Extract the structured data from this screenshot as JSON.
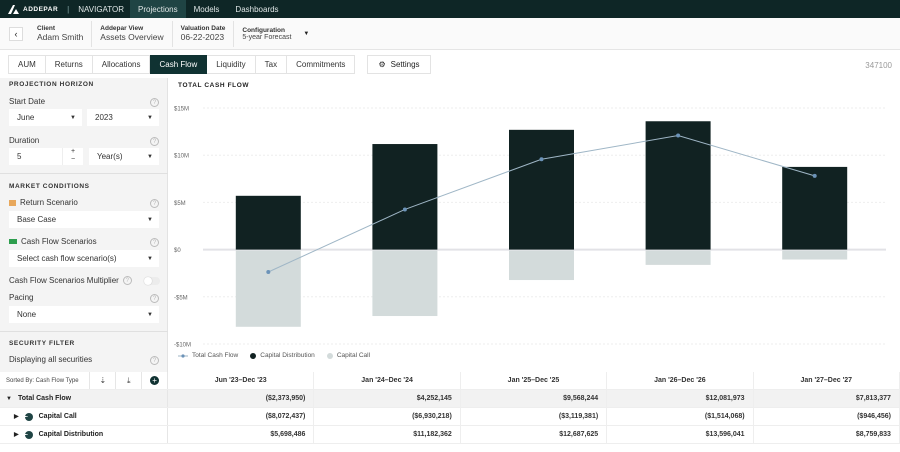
{
  "nav": {
    "brand": "ADDEPAR",
    "product": "NAVIGATOR",
    "items": [
      "Projections",
      "Models",
      "Dashboards"
    ],
    "active": "Projections"
  },
  "header": {
    "client_label": "Client",
    "client": "Adam Smith",
    "view_label": "Addepar View",
    "view": "Assets Overview",
    "date_label": "Valuation Date",
    "date": "06-22-2023",
    "config_label": "Configuration",
    "config": "5-year Forecast"
  },
  "tabs": [
    "AUM",
    "Returns",
    "Allocations",
    "Cash Flow",
    "Liquidity",
    "Tax",
    "Commitments"
  ],
  "active_tab": "Cash Flow",
  "settings_label": "Settings",
  "page_id": "347100",
  "sidebar": {
    "projection_horizon": "PROJECTION HORIZON",
    "start_date_label": "Start Date",
    "start_month": "June",
    "start_year": "2023",
    "duration_label": "Duration",
    "duration": "5",
    "duration_unit": "Year(s)",
    "market_conditions": "MARKET CONDITIONS",
    "return_scenario_label": "Return Scenario",
    "return_scenario": "Base Case",
    "cf_scenarios_label": "Cash Flow Scenarios",
    "cf_scenarios_placeholder": "Select cash flow scenario(s)",
    "multiplier_label": "Cash Flow Scenarios Multiplier",
    "multiplier_on": false,
    "pacing_label": "Pacing",
    "pacing": "None",
    "security_filter": "SECURITY FILTER",
    "security_text": "Displaying all securities"
  },
  "colors": {
    "distribution": "#112222",
    "call": "#d3dbdb",
    "line": "#9fb6c6",
    "accent": "#103232"
  },
  "chart_data": {
    "type": "bar",
    "title": "TOTAL CASH FLOW",
    "categories": [
      "Jun '23–Dec '23",
      "Jan '24–Dec '24",
      "Jan '25–Dec '25",
      "Jan '26–Dec '26",
      "Jan '27–Dec '27"
    ],
    "ylim": [
      -10000000,
      15000000
    ],
    "yticks": [
      {
        "v": 15000000,
        "l": "$15M"
      },
      {
        "v": 10000000,
        "l": "$10M"
      },
      {
        "v": 5000000,
        "l": "$5M"
      },
      {
        "v": 0,
        "l": "$0"
      },
      {
        "v": -5000000,
        "l": "-$5M"
      },
      {
        "v": -10000000,
        "l": "-$10M"
      }
    ],
    "series": [
      {
        "name": "Total Cash Flow",
        "type": "line",
        "values": [
          -2373950,
          4252145,
          9568244,
          12081973,
          7813377
        ]
      },
      {
        "name": "Capital Distribution",
        "type": "bar",
        "values": [
          5698486,
          11182362,
          12687625,
          13596041,
          8759833
        ]
      },
      {
        "name": "Capital Call",
        "type": "bar",
        "values": [
          -8072437,
          -6930218,
          -3119381,
          -1514068,
          -946456
        ]
      }
    ],
    "grid": true,
    "legend": "bottom-left"
  },
  "table": {
    "sorted_by": "Sorted By: Cash Flow Type",
    "columns": [
      "Jun '23–Dec '23",
      "Jan '24–Dec '24",
      "Jan '25–Dec '25",
      "Jan '26–Dec '26",
      "Jan '27–Dec '27"
    ],
    "rows": [
      {
        "label": "Total Cash Flow",
        "values": [
          "($2,373,950)",
          "$4,252,145",
          "$9,568,244",
          "$12,081,973",
          "$7,813,377"
        ]
      },
      {
        "label": "Capital Call",
        "values": [
          "($8,072,437)",
          "($6,930,218)",
          "($3,119,381)",
          "($1,514,068)",
          "($946,456)"
        ]
      },
      {
        "label": "Capital Distribution",
        "values": [
          "$5,698,486",
          "$11,182,362",
          "$12,687,625",
          "$13,596,041",
          "$8,759,833"
        ]
      }
    ]
  }
}
